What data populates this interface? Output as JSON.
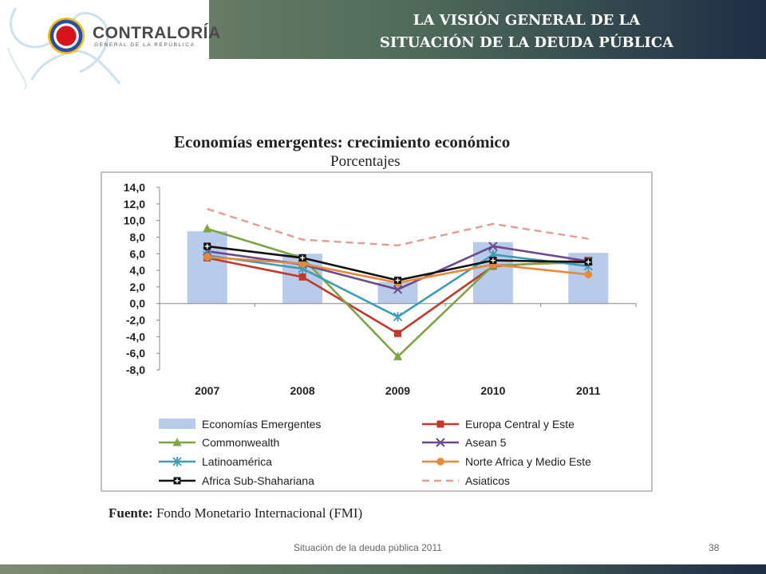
{
  "header": {
    "title_line1": "LA VISIÓN GENERAL DE LA",
    "title_line2": "SITUACIÓN DE LA DEUDA PÚBLICA",
    "logo_name": "CONTRALORÍA",
    "logo_subtitle": "GENERAL DE LA REPÚBLICA"
  },
  "colors": {
    "bars": "#b9cbea",
    "europa": "#c0392b",
    "commonwealth": "#7fa347",
    "asean": "#6a4a8c",
    "latino": "#3f9bb5",
    "norte": "#e8893a",
    "africa": "#111111",
    "asiaticos": "#e19c94"
  },
  "chart_data": {
    "type": "bar",
    "title": "Economías emergentes: crecimiento económico",
    "subtitle": "Porcentajes",
    "categories": [
      "2007",
      "2008",
      "2009",
      "2010",
      "2011"
    ],
    "ylim": [
      -8,
      14
    ],
    "yticks": [
      "14,0",
      "12,0",
      "10,0",
      "8,0",
      "6,0",
      "4,0",
      "2,0",
      "0,0",
      "-2,0",
      "-4,0",
      "-6,0",
      "-8,0"
    ],
    "bars": {
      "name": "Economías Emergentes",
      "values": [
        8.7,
        6.0,
        2.6,
        7.4,
        6.1
      ]
    },
    "series": [
      {
        "name": "Europa Central y Este",
        "marker": "square",
        "values": [
          5.5,
          3.2,
          -3.6,
          4.5,
          5.2
        ]
      },
      {
        "name": "Commonwealth",
        "marker": "triangle",
        "values": [
          9.0,
          5.5,
          -6.4,
          4.6,
          5.0
        ]
      },
      {
        "name": "Asean 5",
        "marker": "x",
        "values": [
          6.3,
          4.7,
          1.7,
          6.9,
          5.1
        ]
      },
      {
        "name": "Latinoamérica",
        "marker": "star",
        "values": [
          5.8,
          4.2,
          -1.6,
          5.9,
          4.5
        ]
      },
      {
        "name": "Norte Africa y Medio Este",
        "marker": "circle",
        "values": [
          5.6,
          4.8,
          2.5,
          4.7,
          3.5
        ]
      },
      {
        "name": "Africa Sub-Shahariana",
        "marker": "boxplus",
        "values": [
          6.9,
          5.5,
          2.8,
          5.2,
          5.0
        ]
      },
      {
        "name": "Asiaticos",
        "marker": "none",
        "dashed": true,
        "values": [
          11.4,
          7.7,
          7.0,
          9.6,
          7.8
        ]
      }
    ],
    "legend": [
      {
        "label": "Economías Emergentes",
        "kind": "bar",
        "color_key": "bars"
      },
      {
        "label": "Europa Central y Este",
        "kind": "square",
        "color_key": "europa"
      },
      {
        "label": "Commonwealth",
        "kind": "triangle",
        "color_key": "commonwealth"
      },
      {
        "label": "Asean 5",
        "kind": "x",
        "color_key": "asean"
      },
      {
        "label": "Latinoamérica",
        "kind": "star",
        "color_key": "latino"
      },
      {
        "label": "Norte Africa y Medio Este",
        "kind": "circle",
        "color_key": "norte"
      },
      {
        "label": "Africa Sub-Shahariana",
        "kind": "boxplus",
        "color_key": "africa"
      },
      {
        "label": "Asiaticos",
        "kind": "dashed",
        "color_key": "asiaticos"
      }
    ],
    "legend_placement": "bottom",
    "grid": false
  },
  "source": {
    "label": "Fuente:",
    "text": "Fondo Monetario Internacional (FMI)"
  },
  "footer": {
    "text": "Situación de la deuda pública 2011",
    "page": "38"
  }
}
